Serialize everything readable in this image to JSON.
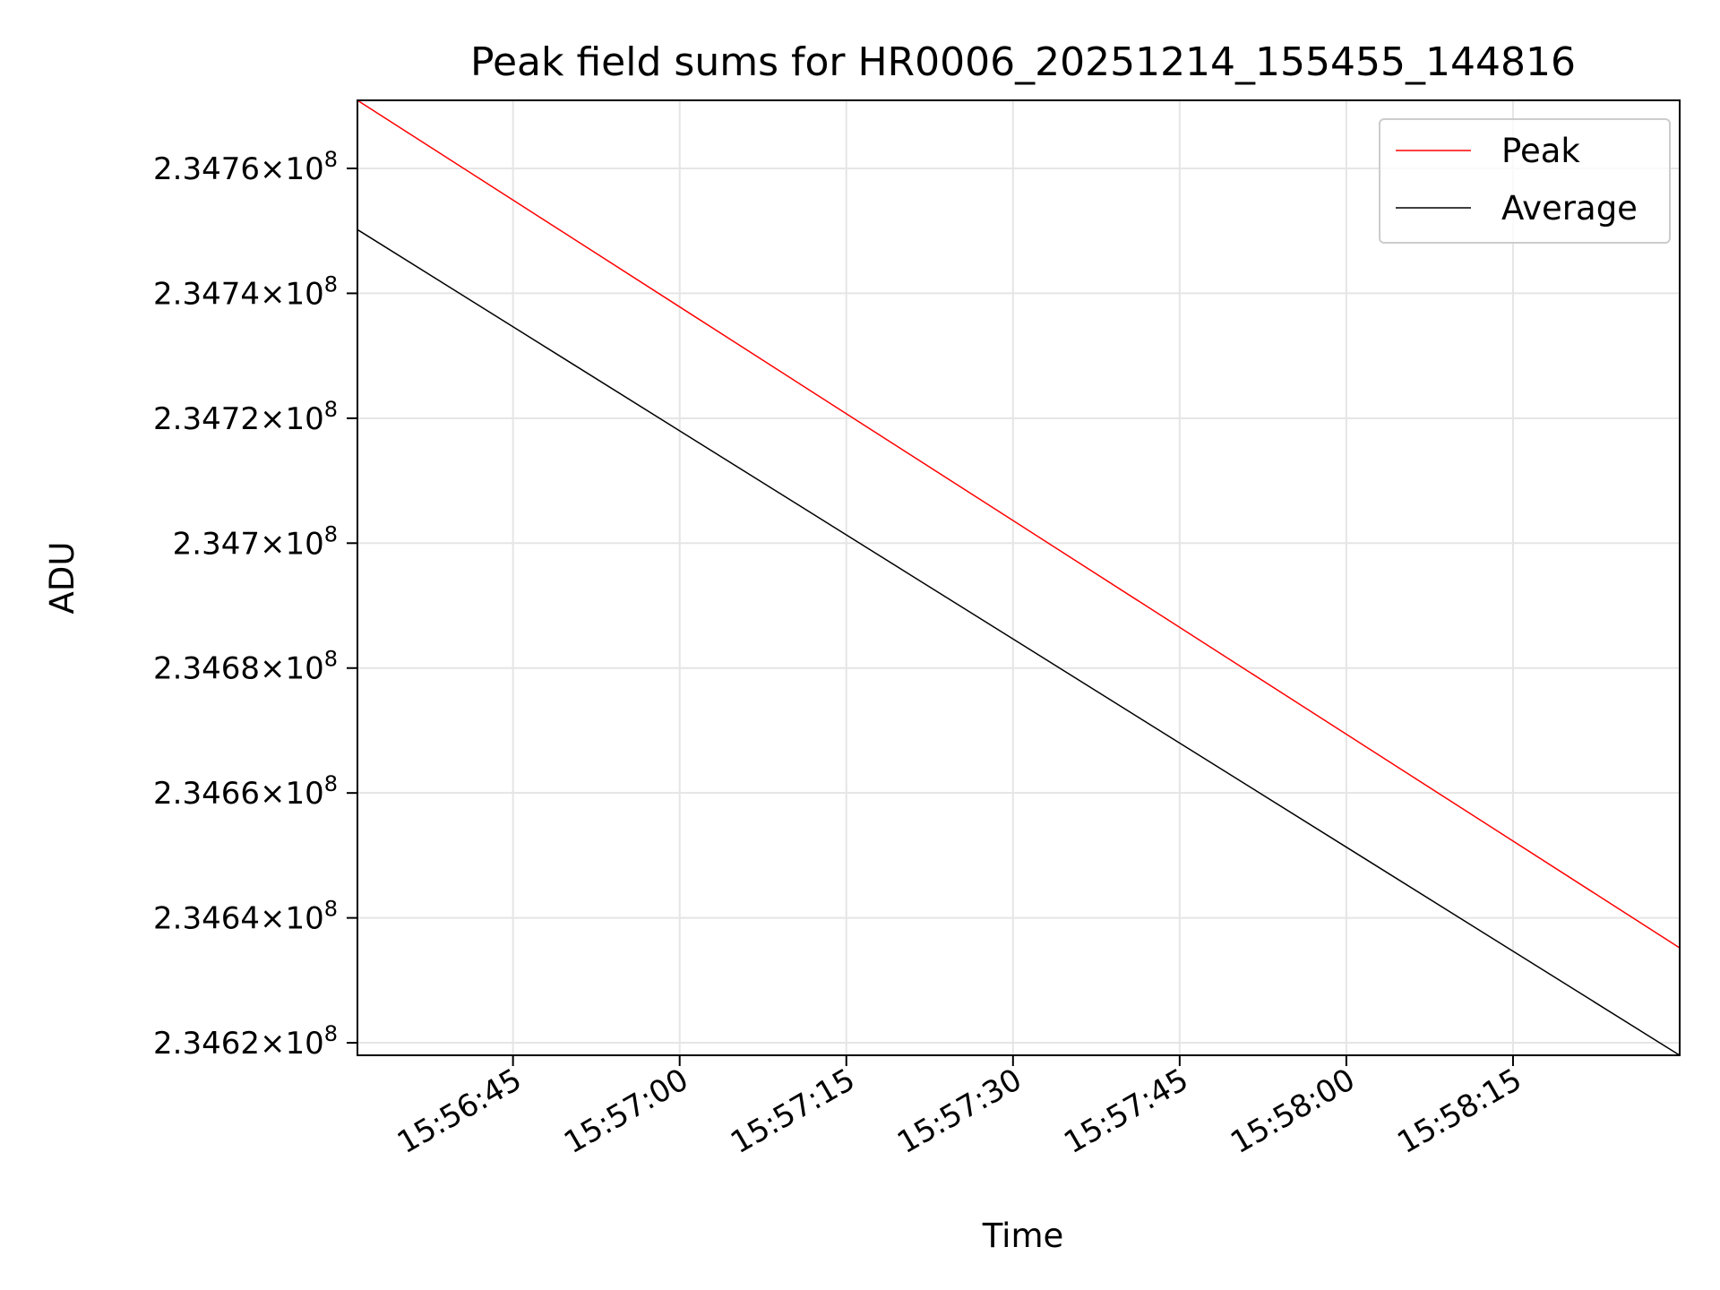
{
  "chart_data": {
    "type": "line",
    "title": "Peak field sums for HR0006_20251214_155455_144816",
    "xlabel": "Time",
    "ylabel": "ADU",
    "xlim_seconds_of_day": [
      57391,
      57510
    ],
    "ylim": [
      234618000,
      234770900
    ],
    "x_ticks": [
      {
        "label": "15:56:45",
        "t": 57405
      },
      {
        "label": "15:57:00",
        "t": 57420
      },
      {
        "label": "15:57:15",
        "t": 57435
      },
      {
        "label": "15:57:30",
        "t": 57450
      },
      {
        "label": "15:57:45",
        "t": 57465
      },
      {
        "label": "15:58:00",
        "t": 57480
      },
      {
        "label": "15:58:15",
        "t": 57495
      }
    ],
    "y_ticks": [
      {
        "mantissa": "2.3476",
        "exp": "8",
        "value": 234760000
      },
      {
        "mantissa": "2.3474",
        "exp": "8",
        "value": 234740000
      },
      {
        "mantissa": "2.3472",
        "exp": "8",
        "value": 234720000
      },
      {
        "mantissa": "2.347",
        "exp": "8",
        "value": 234700000
      },
      {
        "mantissa": "2.3468",
        "exp": "8",
        "value": 234680000
      },
      {
        "mantissa": "2.3466",
        "exp": "8",
        "value": 234660000
      },
      {
        "mantissa": "2.3464",
        "exp": "8",
        "value": 234640000
      },
      {
        "mantissa": "2.3462",
        "exp": "8",
        "value": 234620000
      }
    ],
    "grid": true,
    "legend_position": "top-right",
    "series": [
      {
        "name": "Peak",
        "color": "#ff0000",
        "x": [
          57391,
          57510
        ],
        "y": [
          234770900,
          234635200
        ]
      },
      {
        "name": "Average",
        "color": "#000000",
        "x": [
          57391,
          57510
        ],
        "y": [
          234750200,
          234618000
        ]
      }
    ]
  }
}
